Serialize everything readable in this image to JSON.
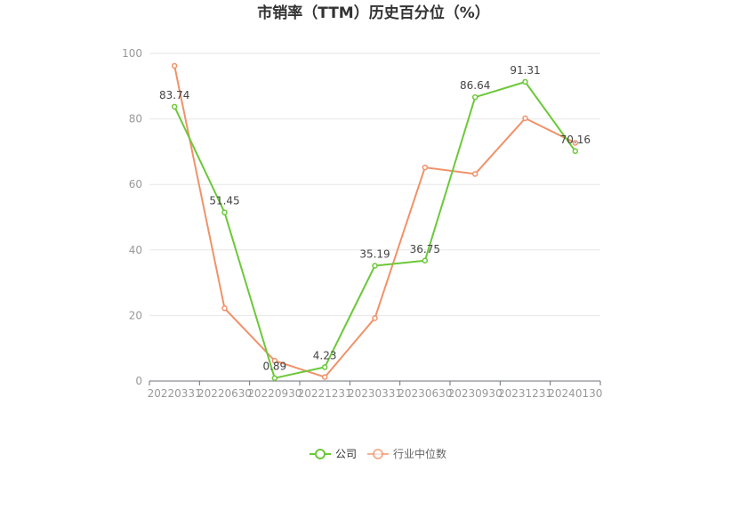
{
  "chart_data": {
    "type": "line",
    "title": "市销率（TTM）历史百分位（%）",
    "x": [
      "20220331",
      "20220630",
      "20220930",
      "20221231",
      "20230331",
      "20230630",
      "20230930",
      "20231231",
      "20240130"
    ],
    "series": [
      {
        "name": "公司",
        "color": "#6cc83a",
        "values": [
          83.74,
          51.45,
          0.89,
          4.23,
          35.19,
          36.75,
          86.64,
          91.31,
          70.16
        ],
        "show_labels": true
      },
      {
        "name": "行业中位数",
        "color": "#f0926a",
        "values": [
          96.2,
          22.2,
          6.2,
          1.2,
          19.2,
          65.2,
          63.2,
          80.2,
          72.7
        ],
        "show_labels": false
      }
    ],
    "ylim": [
      0,
      100
    ],
    "yticks": [
      0,
      20,
      40,
      60,
      80,
      100
    ],
    "grid": true,
    "legend_position": "bottom"
  }
}
